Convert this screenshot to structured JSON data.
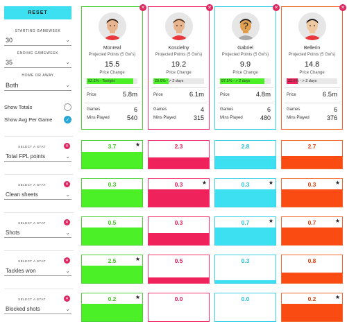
{
  "sidebar": {
    "reset_label": "RESET",
    "starting_label": "STARTING GAMEWEEK",
    "starting_value": "30",
    "ending_label": "ENDING GAMEWEEK",
    "ending_value": "35",
    "homeaway_label": "HOME OR AWAY",
    "homeaway_value": "Both",
    "show_totals_label": "Show Totals",
    "show_totals_checked": false,
    "show_avg_label": "Show Avg Per Game",
    "show_avg_checked": true
  },
  "labels": {
    "projected": "Projected Points (5 Gw's)",
    "price_change": "Price Change",
    "price": "Price",
    "games": "Games",
    "mins": "Mins Played",
    "select_stat": "SELECT A STAT"
  },
  "players": [
    {
      "name": "Monreal",
      "points": "15.5",
      "pc_text": "92.2% - Tonight",
      "pc_level": 0.922,
      "pc_color": "#4cf026",
      "price": "5.8m",
      "games": "6",
      "mins": "540",
      "accent": "#4cd137",
      "hair": "#3b2a1e",
      "face": "#e8b48e",
      "shirt": "#e8383d"
    },
    {
      "name": "Koscielny",
      "points": "19.2",
      "pc_text": "29.6% - > 2 days",
      "pc_level": 0.296,
      "pc_color": "#4cf026",
      "price": "6.1m",
      "games": "4",
      "mins": "315",
      "accent": "#f0346b",
      "hair": "#5b3b24",
      "face": "#e8b48e",
      "shirt": "#e8383d"
    },
    {
      "name": "Gabriel",
      "points": "9.9",
      "pc_text": "87.5% - > 2 days",
      "pc_level": 0.875,
      "pc_color": "#4cf026",
      "price": "4.8m",
      "games": "6",
      "mins": "480",
      "accent": "#3cd0e8",
      "hair": "#222",
      "face": "#e0a050",
      "shirt": "#aaa"
    },
    {
      "name": "Bellerin",
      "points": "14.8",
      "pc_text": "22.6% - > 2 days",
      "pc_level": 0.226,
      "pc_color": "#f0225c",
      "price": "6.5m",
      "games": "6",
      "mins": "376",
      "accent": "#f26a2b",
      "hair": "#1e1e1e",
      "face": "#f0c8a0",
      "shirt": "#e8383d"
    }
  ],
  "stats": [
    {
      "name": "Total FPL points",
      "values": [
        "3.7",
        "2.3",
        "2.8",
        "2.7"
      ],
      "levels": [
        0.6,
        0.4,
        0.45,
        0.45
      ],
      "stars": [
        true,
        false,
        false,
        false
      ]
    },
    {
      "name": "Clean sheets",
      "values": [
        "0.3",
        "0.3",
        "0.3",
        "0.3"
      ],
      "levels": [
        0.62,
        0.62,
        0.62,
        0.62
      ],
      "stars": [
        false,
        true,
        true,
        true
      ]
    },
    {
      "name": "Shots",
      "values": [
        "0.5",
        "0.3",
        "0.7",
        "0.7"
      ],
      "levels": [
        0.62,
        0.42,
        0.62,
        0.62
      ],
      "stars": [
        false,
        false,
        true,
        true
      ]
    },
    {
      "name": "Tackles won",
      "values": [
        "2.5",
        "0.5",
        "0.3",
        "0.8"
      ],
      "levels": [
        0.62,
        0.2,
        0.1,
        0.38
      ],
      "stars": [
        true,
        false,
        false,
        false
      ]
    },
    {
      "name": "Blocked shots",
      "values": [
        "0.2",
        "0.0",
        "0.0",
        "0.2"
      ],
      "levels": [
        0.62,
        0.0,
        0.0,
        0.62
      ],
      "stars": [
        true,
        false,
        false,
        true
      ]
    }
  ],
  "colors": {
    "green": "#4cf026",
    "pink": "#f0225c",
    "cyan": "#3ce0f0",
    "orange": "#fa4b12",
    "green_txt": "#3ec61a",
    "pink_txt": "#e01c55",
    "cyan_txt": "#27bfd6",
    "orange_txt": "#e0400a",
    "green_border": "#4cd137",
    "pink_border": "#f0346b",
    "cyan_border": "#3cd0e8",
    "orange_border": "#f26a2b"
  }
}
